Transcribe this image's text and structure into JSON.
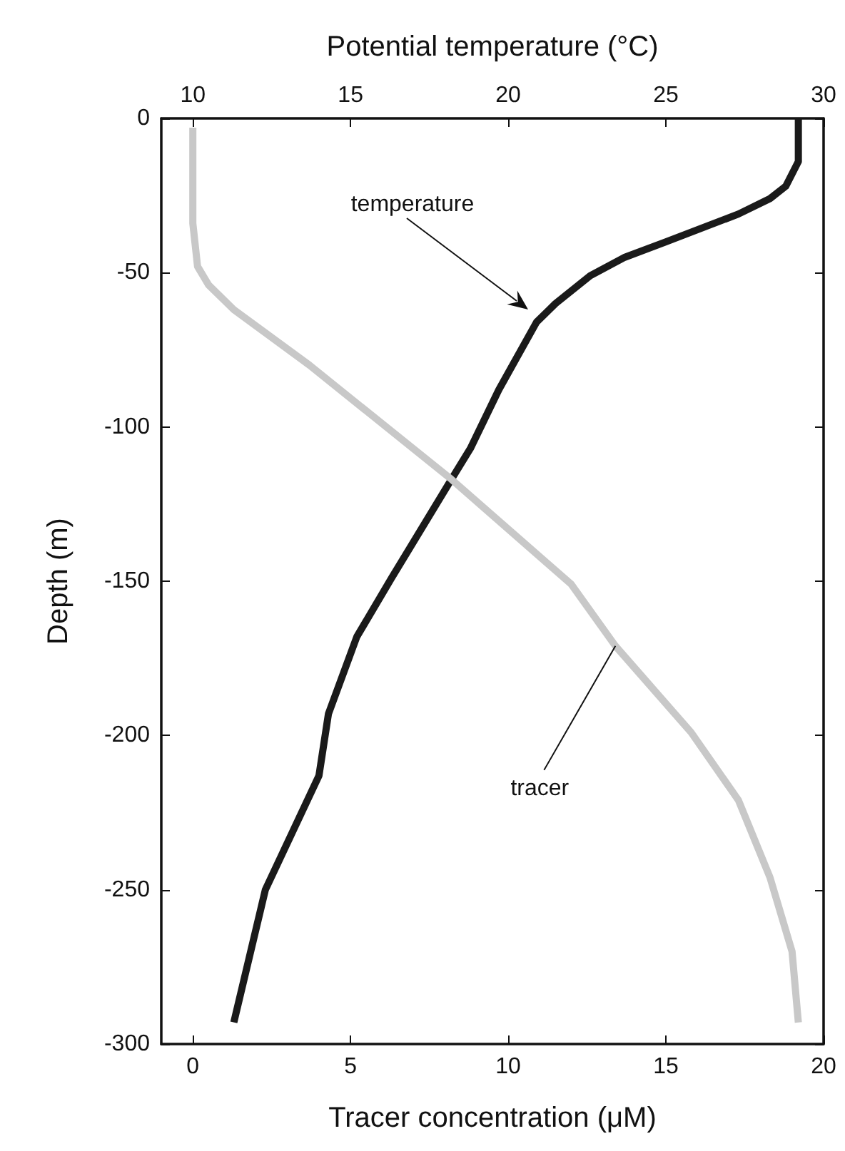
{
  "chart_data": {
    "type": "line",
    "xlabel": "Tracer concentration (μM)",
    "x2label": "Potential temperature (°C)",
    "ylabel": "Depth (m)",
    "xlim": [
      -1,
      20
    ],
    "xticks": [
      0,
      5,
      10,
      15,
      20
    ],
    "x2lim": [
      9,
      30
    ],
    "x2ticks": [
      10,
      15,
      20,
      25,
      30
    ],
    "ylim": [
      -300,
      0
    ],
    "yticks": [
      0,
      -50,
      -100,
      -150,
      -200,
      -250,
      -300
    ],
    "grid": false,
    "marker": "none",
    "series": [
      {
        "color": "#1a1a1a",
        "axis": "x2",
        "x": [
          29.2,
          29.2,
          28.8,
          28.3,
          27.3,
          25.0,
          23.7,
          22.6,
          21.5,
          20.9,
          19.7,
          18.8,
          18.2,
          16.3,
          15.2,
          14.3,
          14.0,
          12.3,
          11.3
        ],
        "values": [
          0,
          -14,
          -22,
          -26,
          -31,
          -40,
          -45,
          -51,
          -60,
          -66,
          -88,
          -107,
          -117,
          -149,
          -168,
          -193,
          -213,
          -250,
          -293
        ]
      },
      {
        "color": "#c8c8c8",
        "x": [
          0,
          0,
          0.15,
          0.5,
          1.3,
          3.7,
          8.2,
          12.0,
          13.4,
          15.8,
          17.3,
          18.3,
          19.0,
          19.2
        ],
        "values": [
          -3,
          -34,
          -48,
          -54,
          -62,
          -80,
          -117,
          -151,
          -171,
          -199,
          -221,
          -246,
          -270,
          -293
        ]
      }
    ],
    "annotations": [
      "temperature",
      {
        "text": "tracer",
        "x": 13.4,
        "y": -171
      }
    ]
  }
}
